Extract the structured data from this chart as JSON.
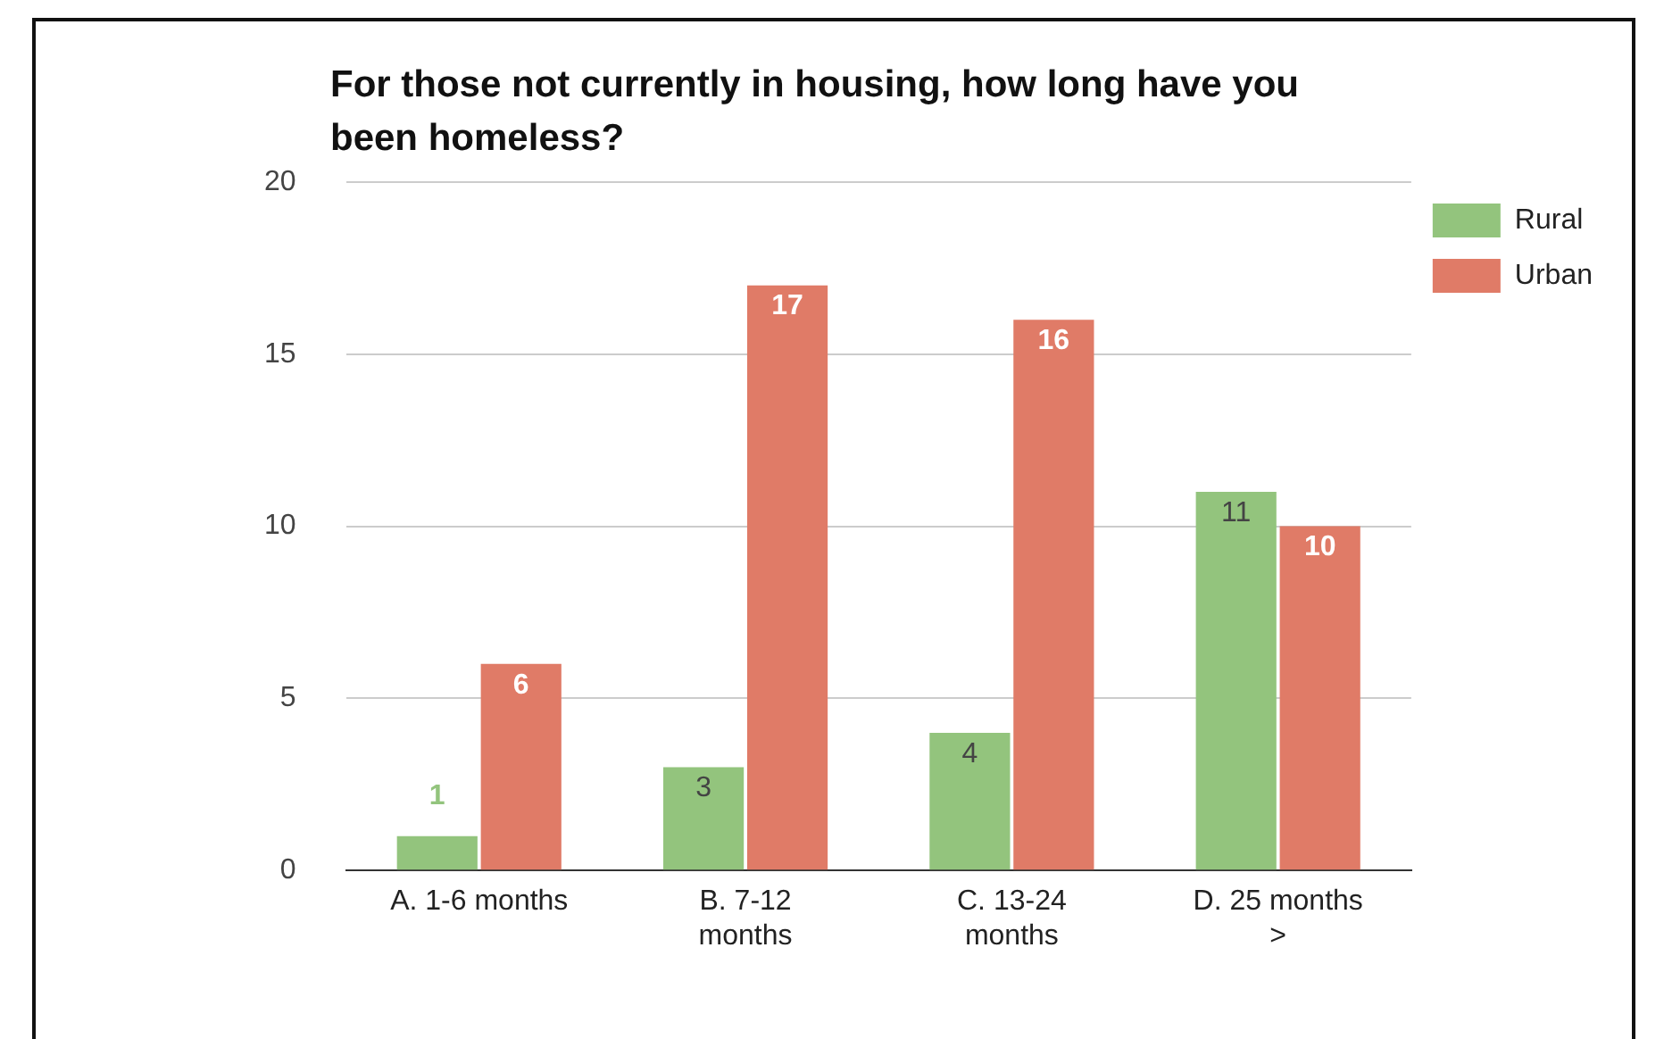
{
  "chart_data": {
    "type": "bar",
    "title": "For those not currently in housing, how long have you been homeless?",
    "categories": [
      "A. 1-6 months",
      "B. 7-12 months",
      "C. 13-24 months",
      "D. 25 months >"
    ],
    "series": [
      {
        "name": "Rural",
        "color": "#93c47d",
        "values": [
          1,
          3,
          4,
          11
        ]
      },
      {
        "name": "Urban",
        "color": "#e07b67",
        "values": [
          6,
          17,
          16,
          10
        ]
      }
    ],
    "ylim": [
      0,
      20
    ],
    "yticks": [
      0,
      5,
      10,
      15,
      20
    ],
    "grid": "y",
    "legend": "top right",
    "data_labels": true
  }
}
